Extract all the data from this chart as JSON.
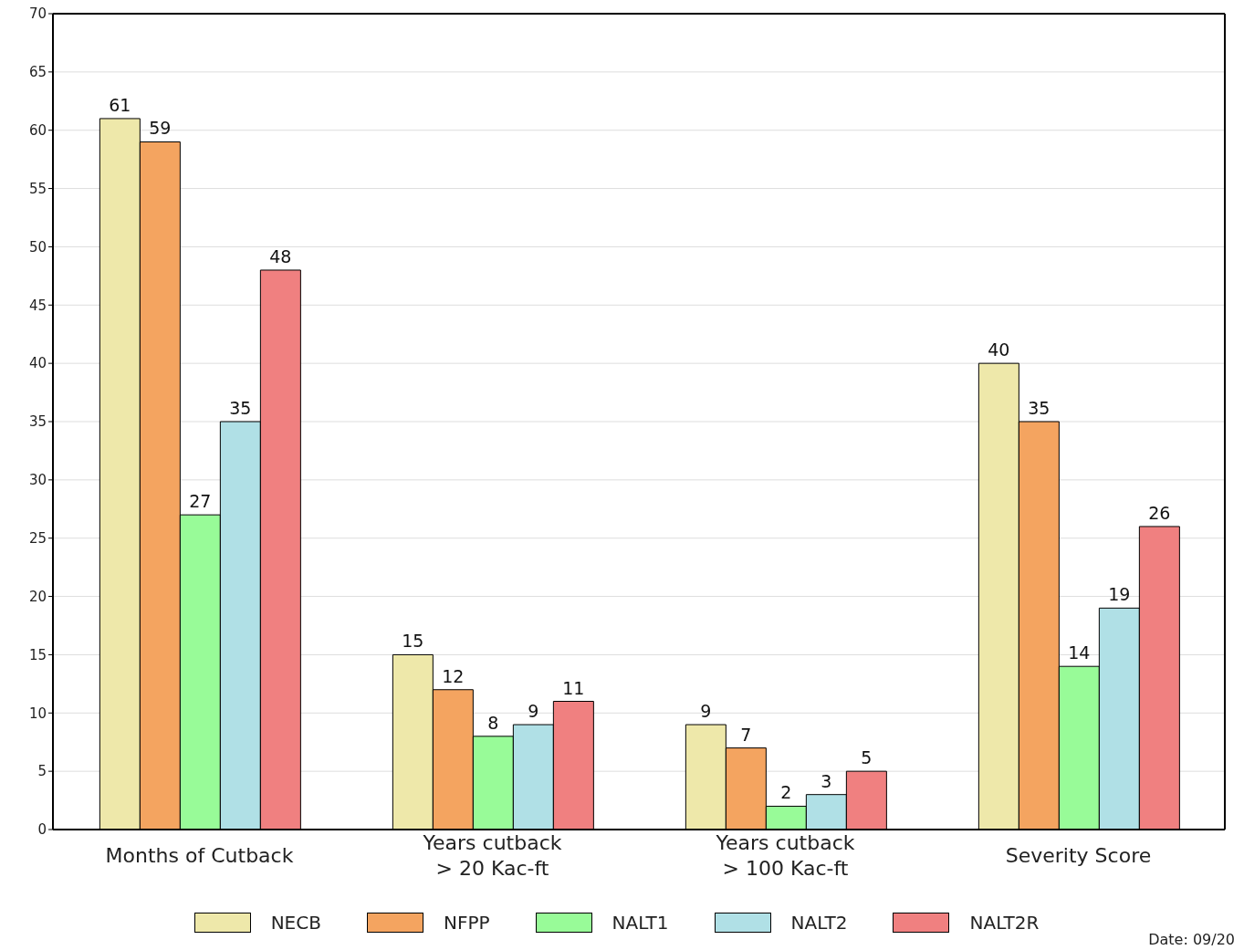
{
  "chart_data": {
    "type": "bar",
    "categories": [
      "Months of Cutback",
      "Years cutback\n> 20 Kac-ft",
      "Years cutback\n> 100 Kac-ft",
      "Severity Score"
    ],
    "series": [
      {
        "name": "NECB",
        "color": "#eee8aa",
        "values": [
          61,
          15,
          9,
          40
        ]
      },
      {
        "name": "NFPP",
        "color": "#f4a460",
        "values": [
          59,
          12,
          7,
          35
        ]
      },
      {
        "name": "NALT1",
        "color": "#98fb98",
        "values": [
          27,
          8,
          2,
          14
        ]
      },
      {
        "name": "NALT2",
        "color": "#b0e0e6",
        "values": [
          35,
          9,
          3,
          19
        ]
      },
      {
        "name": "NALT2R",
        "color": "#f08080",
        "values": [
          48,
          11,
          5,
          26
        ]
      }
    ],
    "ylim": [
      0,
      70
    ],
    "yticks": [
      0,
      5,
      10,
      15,
      20,
      25,
      30,
      35,
      40,
      45,
      50,
      55,
      60,
      65,
      70
    ],
    "grid": "y",
    "legend": "bottom",
    "data_labels": true,
    "annotations": [
      "Date: 09/20"
    ]
  }
}
